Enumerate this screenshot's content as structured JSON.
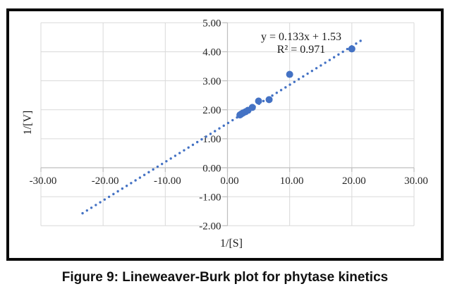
{
  "figure": {
    "caption": "Figure 9: Lineweaver-Burk plot for phytase kinetics"
  },
  "chart_data": {
    "type": "scatter",
    "title": "",
    "xlabel": "1/[S]",
    "ylabel": "1/[V]",
    "xlim": [
      -30,
      30
    ],
    "ylim": [
      -2,
      5
    ],
    "grid": true,
    "legend": "none",
    "xticks": [
      {
        "value": -30,
        "label": "-30.00"
      },
      {
        "value": -20,
        "label": "-20.00"
      },
      {
        "value": -10,
        "label": "-10.00"
      },
      {
        "value": 0,
        "label": "0.00"
      },
      {
        "value": 10,
        "label": "10.00"
      },
      {
        "value": 20,
        "label": "20.00"
      },
      {
        "value": 30,
        "label": "30.00"
      }
    ],
    "yticks": [
      {
        "value": 5,
        "label": "5.00"
      },
      {
        "value": 4,
        "label": "4.00"
      },
      {
        "value": 3,
        "label": "3.00"
      },
      {
        "value": 2,
        "label": "2.00"
      },
      {
        "value": 1,
        "label": "1.00"
      },
      {
        "value": 0,
        "label": "0.00"
      },
      {
        "value": -1,
        "label": "-1.00"
      },
      {
        "value": -2,
        "label": "-2.00"
      }
    ],
    "points": [
      {
        "x": 2.0,
        "y": 1.82
      },
      {
        "x": 2.2,
        "y": 1.85
      },
      {
        "x": 2.5,
        "y": 1.89
      },
      {
        "x": 2.9,
        "y": 1.93
      },
      {
        "x": 3.3,
        "y": 1.98
      },
      {
        "x": 4.0,
        "y": 2.08
      },
      {
        "x": 5.0,
        "y": 2.3
      },
      {
        "x": 6.7,
        "y": 2.35
      },
      {
        "x": 10.0,
        "y": 3.22
      },
      {
        "x": 20.0,
        "y": 4.1
      }
    ],
    "trendline": {
      "label_line1": "y = 0.133x + 1.53",
      "label_line2": "R² = 0.971",
      "slope": 0.133,
      "intercept": 1.53,
      "x_start": -23.3,
      "x_end": 21.4,
      "style": "dotted"
    },
    "colors": {
      "series": "#4472c4",
      "gridline": "#d9d9d9",
      "axis": "#bfbfbf",
      "tick_label": "#262626",
      "annotation": "#1a1a1a"
    }
  }
}
